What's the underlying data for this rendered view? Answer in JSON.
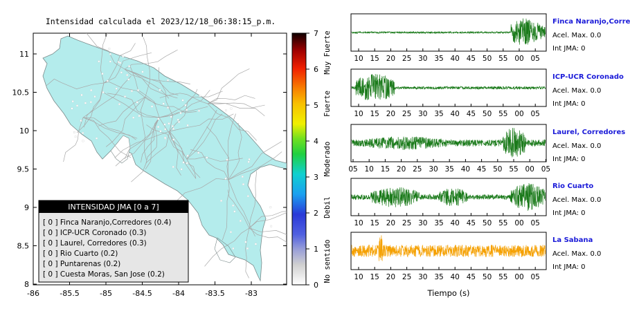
{
  "map": {
    "title": "Intensidad calculada el 2023/12/18_06:38:15_p.m.",
    "x_ticks": [
      "-86",
      "-85.5",
      "-85",
      "-84.5",
      "-84",
      "-83.5",
      "-83"
    ],
    "y_ticks": [
      "11",
      "10.5",
      "10",
      "9.5",
      "9",
      "8.5",
      "8"
    ],
    "land_color": "#b4ecec",
    "legend": {
      "title": "INTENSIDAD JMA [0 a 7]",
      "items": [
        "[ 0 ]  Finca Naranjo,Corredores (0.4)",
        "[ 0 ]  ICP-UCR Coronado (0.3)",
        "[ 0 ]  Laurel, Corredores (0.3)",
        "[ 0 ]  Rio Cuarto (0.2)",
        "[ 0 ]  Puntarenas (0.2)",
        "[ 0 ]  Cuesta Moras, San Jose (0.2)"
      ]
    }
  },
  "colorbar": {
    "ticks": [
      "7",
      "6",
      "5",
      "4",
      "3",
      "2",
      "1",
      "0"
    ],
    "labels": [
      "Muy Fuerte",
      "Fuerte",
      "Moderado",
      "Debil",
      "No sentido"
    ]
  },
  "waveforms": {
    "xlabel": "Tiempo (s)",
    "stations": [
      {
        "name": "Finca Naranjo,Corredor",
        "accel": "Acel. Max. 0.0",
        "jma": "Int JMA: 0",
        "color": "#1a7a1a",
        "ticks": [
          "10",
          "15",
          "20",
          "25",
          "30",
          "35",
          "40",
          "45",
          "50",
          "55",
          "00",
          "05"
        ]
      },
      {
        "name": "ICP-UCR Coronado",
        "accel": "Acel. Max. 0.0",
        "jma": "Int JMA: 0",
        "color": "#1a7a1a",
        "ticks": [
          "10",
          "15",
          "20",
          "25",
          "30",
          "35",
          "40",
          "45",
          "50",
          "55",
          "00",
          "05"
        ]
      },
      {
        "name": "Laurel, Corredores",
        "accel": "Acel. Max. 0.0",
        "jma": "Int JMA: 0",
        "color": "#1a7a1a",
        "ticks": [
          "05",
          "10",
          "15",
          "20",
          "25",
          "30",
          "35",
          "40",
          "45",
          "50",
          "55",
          "00",
          "05"
        ]
      },
      {
        "name": "Rio Cuarto",
        "accel": "Acel. Max. 0.0",
        "jma": "Int JMA: 0",
        "color": "#1a7a1a",
        "ticks": [
          "10",
          "15",
          "20",
          "25",
          "30",
          "35",
          "40",
          "45",
          "50",
          "55",
          "00",
          "05"
        ]
      },
      {
        "name": "La Sabana",
        "accel": "Acel. Max. 0.0",
        "jma": "Int JMA: 0",
        "color": "#f5a000",
        "ticks": [
          "10",
          "15",
          "20",
          "25",
          "30",
          "35",
          "40",
          "45",
          "50",
          "55",
          "00",
          "05"
        ]
      }
    ]
  },
  "chart_data": [
    {
      "type": "map",
      "title": "Intensidad calculada el 2023/12/18_06:38:15_p.m.",
      "xlim": [
        -86,
        -82.6
      ],
      "ylim": [
        8,
        11.3
      ],
      "legend_title": "INTENSIDAD JMA [0 a 7]",
      "stations": [
        {
          "name": "Finca Naranjo,Corredores",
          "jma": 0,
          "value": 0.4
        },
        {
          "name": "ICP-UCR Coronado",
          "jma": 0,
          "value": 0.3
        },
        {
          "name": "Laurel, Corredores",
          "jma": 0,
          "value": 0.3
        },
        {
          "name": "Rio Cuarto",
          "jma": 0,
          "value": 0.2
        },
        {
          "name": "Puntarenas",
          "jma": 0,
          "value": 0.2
        },
        {
          "name": "Cuesta Moras, San Jose",
          "jma": 0,
          "value": 0.2
        }
      ]
    },
    {
      "type": "heatmap",
      "range": [
        0,
        7
      ],
      "labels": [
        "No sentido",
        "Debil",
        "Moderado",
        "Fuerte",
        "Muy Fuerte"
      ]
    },
    {
      "type": "line",
      "xlabel": "Tiempo (s)",
      "series": [
        {
          "name": "Finca Naranjo,Corredor",
          "max_accel": 0.0,
          "jma": 0
        },
        {
          "name": "ICP-UCR Coronado",
          "max_accel": 0.0,
          "jma": 0
        },
        {
          "name": "Laurel, Corredores",
          "max_accel": 0.0,
          "jma": 0
        },
        {
          "name": "Rio Cuarto",
          "max_accel": 0.0,
          "jma": 0
        },
        {
          "name": "La Sabana",
          "max_accel": 0.0,
          "jma": 0
        }
      ]
    }
  ]
}
